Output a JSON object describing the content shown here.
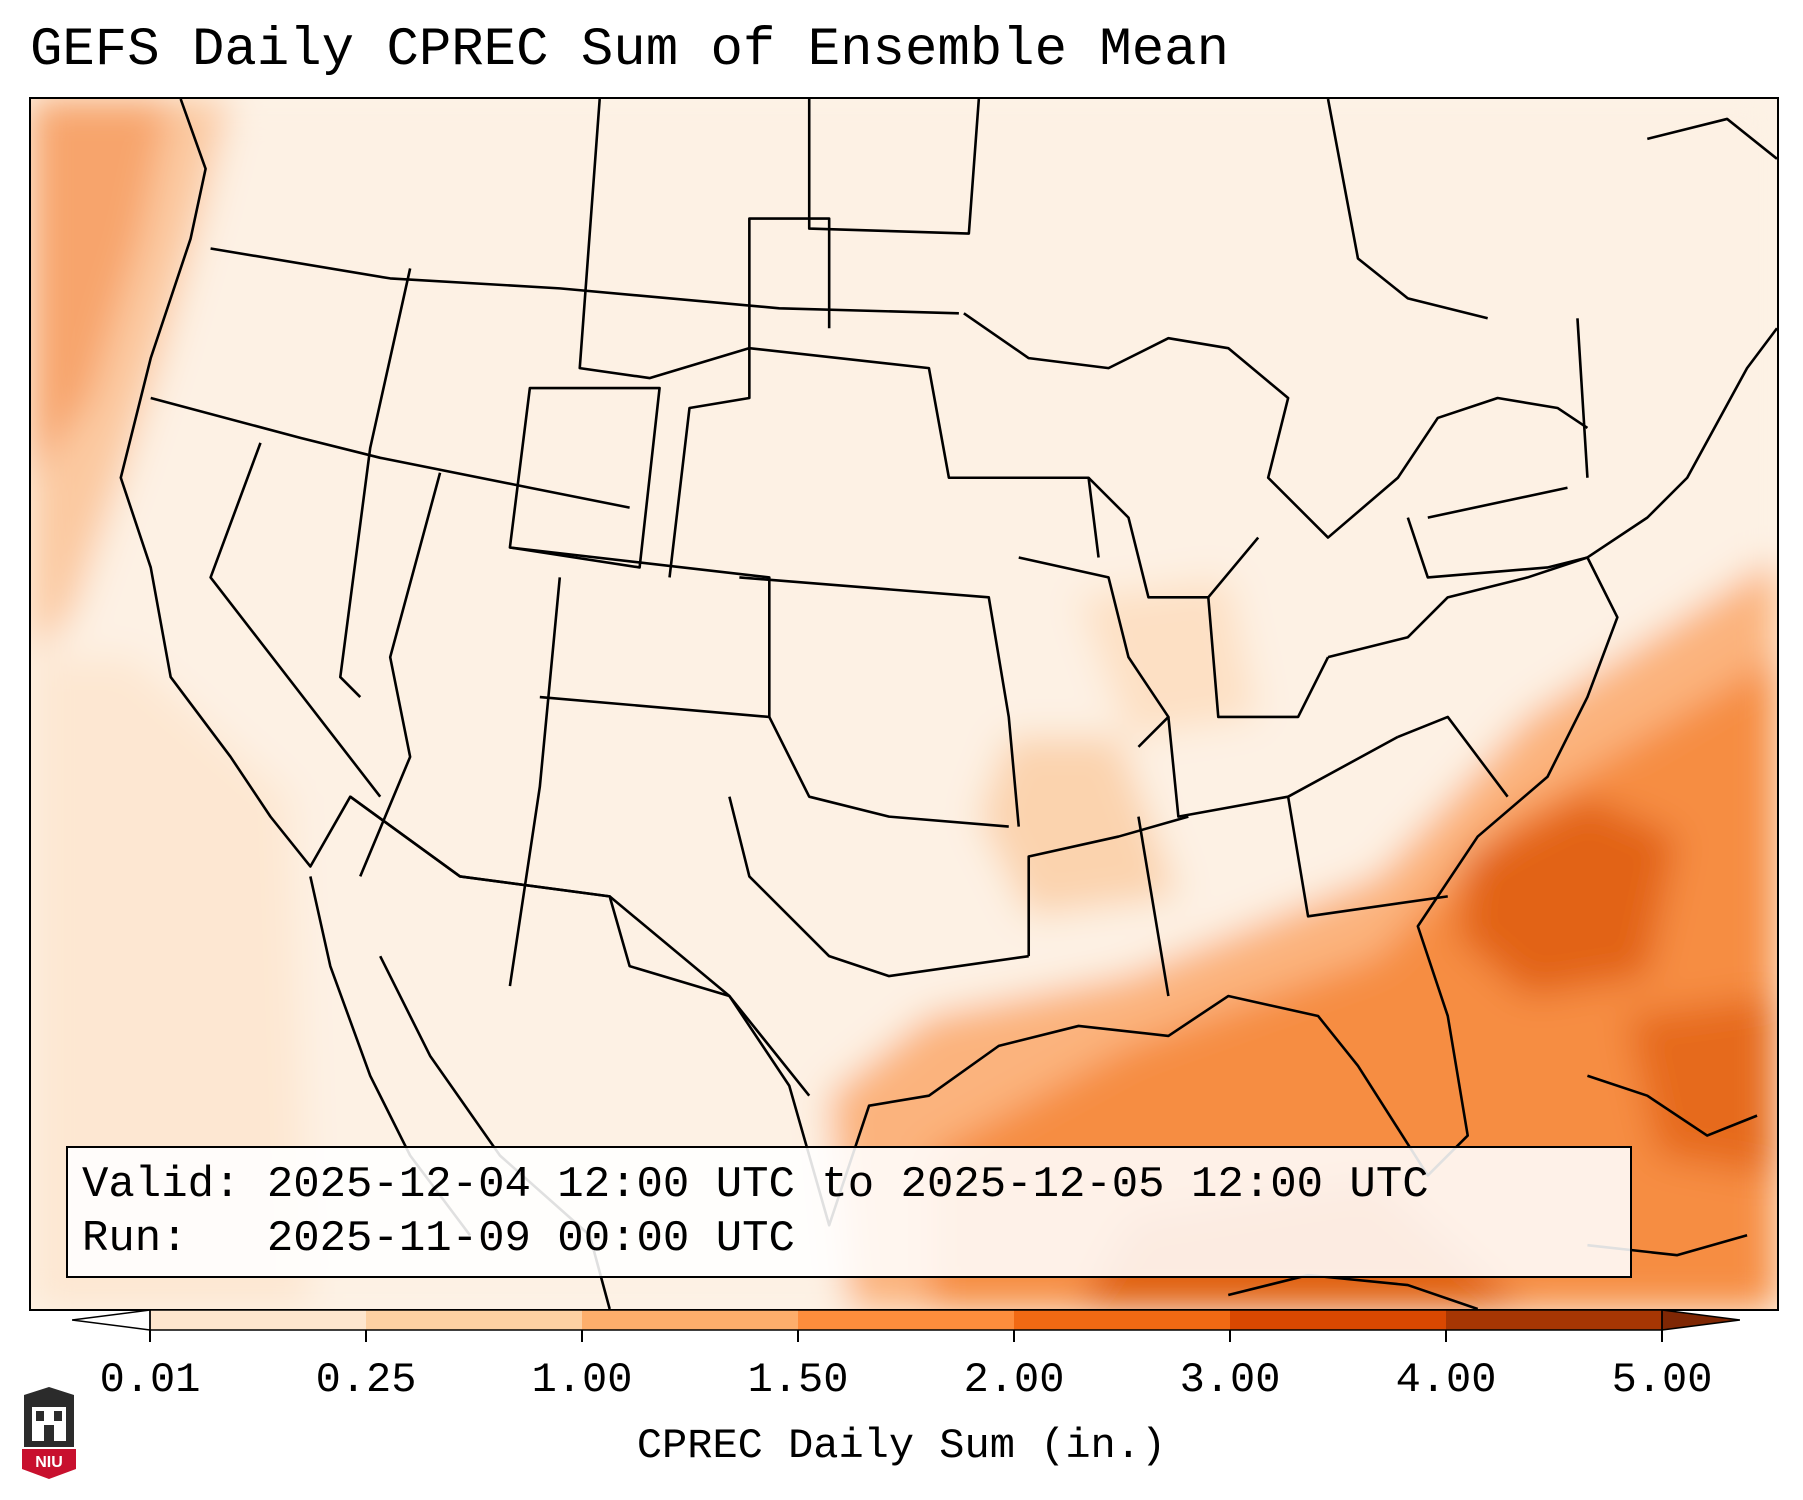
{
  "title": "GEFS Daily CPREC Sum of Ensemble Mean",
  "info_box": {
    "valid_label": "Valid:",
    "valid_value": "2025-12-04 12:00 UTC to 2025-12-05 12:00 UTC",
    "run_label": "Run:",
    "run_value": "2025-11-09 00:00 UTC"
  },
  "colorbar": {
    "label": "CPREC Daily Sum (in.)",
    "ticks": [
      "0.01",
      "0.25",
      "1.00",
      "1.50",
      "2.00",
      "3.00",
      "4.00",
      "5.00"
    ],
    "colors": [
      "#fff5eb",
      "#fee6ce",
      "#fdd0a2",
      "#fdae6b",
      "#fd8d3c",
      "#f16913",
      "#d94801",
      "#a63603"
    ]
  },
  "logo": {
    "text": "NIU",
    "icon": "niu-logo-icon"
  }
}
